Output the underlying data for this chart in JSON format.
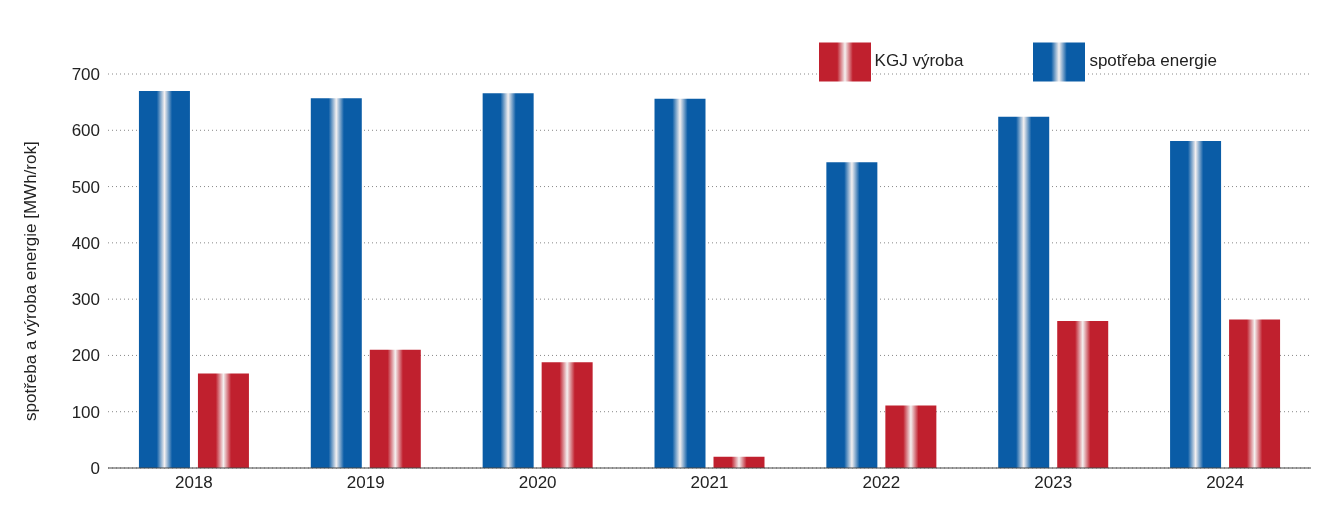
{
  "chart_data": {
    "type": "bar",
    "ylabel": "spotřeba a výroba energie [MWh/rok]",
    "categories": [
      "2018",
      "2019",
      "2020",
      "2021",
      "2022",
      "2023",
      "2024"
    ],
    "series": [
      {
        "name": "spotřeba energie",
        "color": "#0a5ca6",
        "values": [
          670,
          657,
          666,
          656,
          543,
          624,
          581
        ]
      },
      {
        "name": "KGJ výroba",
        "color": "#c0202e",
        "values": [
          168,
          210,
          188,
          20,
          111,
          261,
          264
        ]
      }
    ],
    "ylim": [
      0,
      700
    ],
    "yticks": [
      0,
      100,
      200,
      300,
      400,
      500,
      600,
      700
    ],
    "grid": "y",
    "legend": "top right"
  }
}
